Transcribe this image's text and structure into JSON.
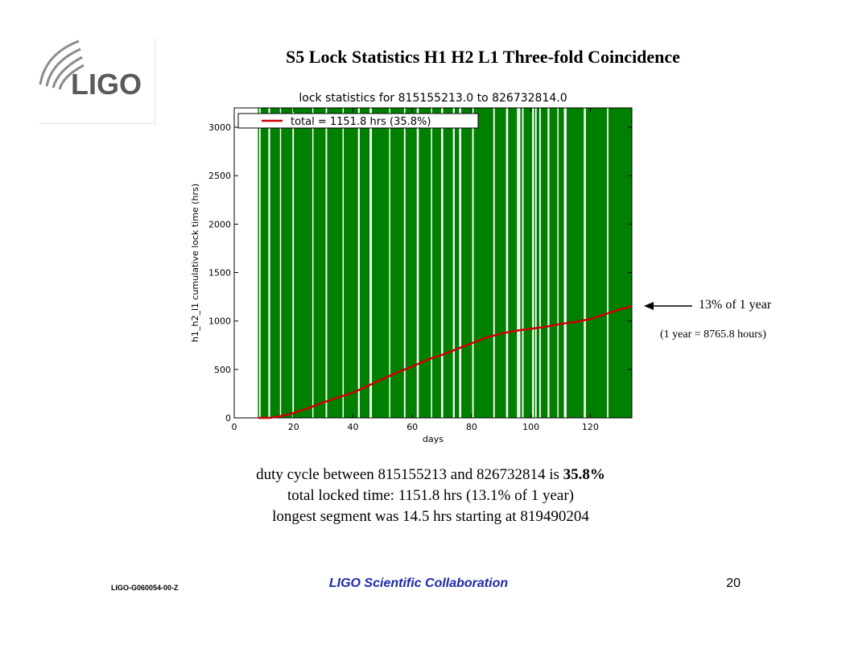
{
  "slide": {
    "title": "S5 Lock Statistics  H1 H2 L1 Three-fold Coincidence",
    "logo_text": "LIGO",
    "annotation": {
      "label": "13% of 1 year",
      "sub": "(1 year = 8765.8 hours)"
    },
    "summary": {
      "line1_prefix": "duty cycle between 815155213 and 826732814 is ",
      "line1_bold": "35.8%",
      "line2": "total locked time: 1151.8 hrs (13.1% of 1 year)",
      "line3": "longest segment was 14.5 hrs starting at 819490204"
    },
    "footer": {
      "doc_id": "LIGO-G060054-00-Z",
      "collaboration": "LIGO Scientific Collaboration",
      "page": "20"
    }
  },
  "colors": {
    "locked_fill": "#008000",
    "cumulative_line": "#cc0000",
    "title_color": "#000000",
    "footer_accent": "#1d2aa8"
  },
  "chart_data": {
    "type": "line",
    "title": "lock statistics for 815155213.0 to 826732814.0",
    "xlabel": "days",
    "ylabel": "h1_h2_l1 cumulative lock time (hrs)",
    "xlim": [
      0,
      134
    ],
    "ylim": [
      0,
      3200
    ],
    "xticks": [
      0,
      20,
      40,
      60,
      80,
      100,
      120
    ],
    "yticks": [
      0,
      500,
      1000,
      1500,
      2000,
      2500,
      3000
    ],
    "legend": {
      "entry": "total = 1151.8 hrs (35.8%)",
      "placement": "top-left"
    },
    "series": [
      {
        "name": "total = 1151.8 hrs (35.8%)",
        "x": [
          8,
          12,
          16,
          20,
          25,
          30,
          35,
          40,
          45,
          50,
          55,
          60,
          65,
          70,
          75,
          80,
          85,
          90,
          95,
          100,
          105,
          110,
          115,
          120,
          125,
          130,
          134
        ],
        "y": [
          0,
          0,
          20,
          50,
          100,
          160,
          210,
          260,
          330,
          400,
          470,
          530,
          600,
          650,
          710,
          770,
          830,
          870,
          900,
          920,
          940,
          970,
          990,
          1020,
          1070,
          1120,
          1152
        ]
      }
    ],
    "gaps_days": [
      [
        0,
        8
      ],
      [
        8.4,
        8.9
      ],
      [
        11.5,
        12.1
      ],
      [
        15.4,
        15.8
      ],
      [
        19.6,
        20.1
      ],
      [
        26.3,
        26.7
      ],
      [
        30.8,
        31.3
      ],
      [
        36.5,
        36.9
      ],
      [
        41.7,
        42.3
      ],
      [
        45.6,
        46.4
      ],
      [
        52.2,
        52.6
      ],
      [
        57.2,
        57.7
      ],
      [
        61.5,
        62.2
      ],
      [
        66.3,
        66.7
      ],
      [
        69.7,
        70.4
      ],
      [
        73.7,
        74.3
      ],
      [
        75.8,
        76.5
      ],
      [
        80.2,
        80.7
      ],
      [
        87.3,
        87.8
      ],
      [
        91.6,
        92.3
      ],
      [
        95.3,
        96.4
      ],
      [
        97.0,
        97.5
      ],
      [
        100.4,
        101.0
      ],
      [
        101.4,
        101.9
      ],
      [
        102.8,
        103.3
      ],
      [
        105.6,
        106.2
      ],
      [
        108.9,
        109.3
      ],
      [
        111.1,
        112.0
      ],
      [
        117.8,
        118.5
      ],
      [
        125.6,
        126.1
      ]
    ]
  }
}
